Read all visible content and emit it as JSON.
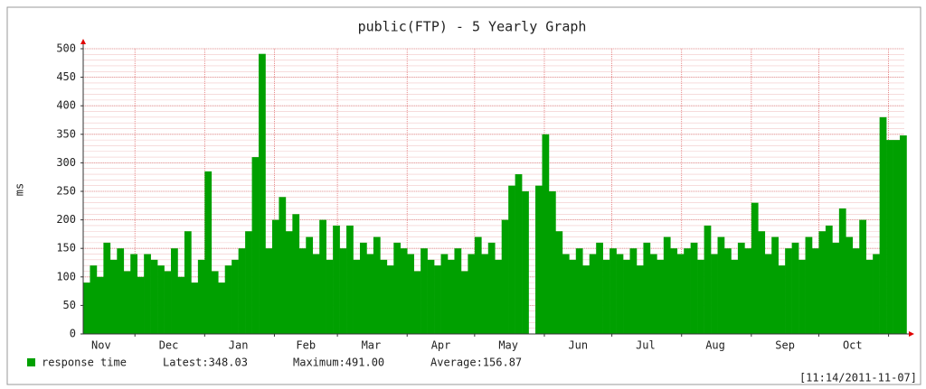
{
  "chart_data": {
    "type": "bar",
    "title": "public(FTP) - 5 Yearly Graph",
    "y_label": "ms",
    "color": "#00a000",
    "ylim": [
      0,
      500
    ],
    "yticks": [
      0,
      50,
      100,
      150,
      200,
      250,
      300,
      350,
      400,
      450,
      500
    ],
    "minor_grid_step": 10,
    "grid": true,
    "xlim": [
      0,
      365
    ],
    "xticks": [
      23,
      54,
      85,
      113,
      144,
      174,
      205,
      235,
      266,
      297,
      327,
      358
    ],
    "month_labels": [
      {
        "value": 8,
        "label": "Nov"
      },
      {
        "value": 38,
        "label": "Dec"
      },
      {
        "value": 69,
        "label": "Jan"
      },
      {
        "value": 99,
        "label": "Feb"
      },
      {
        "value": 128,
        "label": "Mar"
      },
      {
        "value": 159,
        "label": "Apr"
      },
      {
        "value": 189,
        "label": "May"
      },
      {
        "value": 220,
        "label": "Jun"
      },
      {
        "value": 250,
        "label": "Jul"
      },
      {
        "value": 281,
        "label": "Aug"
      },
      {
        "value": 312,
        "label": "Sep"
      },
      {
        "value": 342,
        "label": "Oct"
      }
    ],
    "bar_width": 3,
    "x": [
      0,
      3,
      6,
      9,
      12,
      15,
      18,
      21,
      24,
      27,
      30,
      33,
      36,
      39,
      42,
      45,
      48,
      51,
      54,
      57,
      60,
      63,
      66,
      69,
      72,
      75,
      78,
      81,
      84,
      87,
      90,
      93,
      96,
      99,
      102,
      105,
      108,
      111,
      114,
      117,
      120,
      123,
      126,
      129,
      132,
      135,
      138,
      141,
      144,
      147,
      150,
      153,
      156,
      159,
      162,
      165,
      168,
      171,
      174,
      177,
      180,
      183,
      186,
      189,
      192,
      195,
      198,
      201,
      204,
      207,
      210,
      213,
      216,
      219,
      222,
      225,
      228,
      231,
      234,
      237,
      240,
      243,
      246,
      249,
      252,
      255,
      258,
      261,
      264,
      267,
      270,
      273,
      276,
      279,
      282,
      285,
      288,
      291,
      294,
      297,
      300,
      303,
      306,
      309,
      312,
      315,
      318,
      321,
      324,
      327,
      330,
      333,
      336,
      339,
      342,
      345,
      348,
      351,
      354,
      357,
      360,
      363
    ],
    "series": [
      {
        "name": "response time",
        "color": "#00a000",
        "values": [
          90,
          120,
          100,
          160,
          130,
          150,
          110,
          140,
          100,
          140,
          130,
          120,
          110,
          150,
          100,
          180,
          90,
          130,
          285,
          110,
          90,
          120,
          130,
          150,
          180,
          310,
          491,
          150,
          200,
          240,
          180,
          210,
          150,
          170,
          140,
          200,
          130,
          190,
          150,
          190,
          130,
          160,
          140,
          170,
          130,
          120,
          160,
          150,
          140,
          110,
          150,
          130,
          120,
          140,
          130,
          150,
          110,
          140,
          170,
          140,
          160,
          130,
          200,
          260,
          280,
          250,
          null,
          260,
          350,
          250,
          180,
          140,
          130,
          150,
          120,
          140,
          160,
          130,
          150,
          140,
          130,
          150,
          120,
          160,
          140,
          130,
          170,
          150,
          140,
          150,
          160,
          130,
          190,
          140,
          170,
          150,
          130,
          160,
          150,
          230,
          180,
          140,
          170,
          120,
          150,
          160,
          130,
          170,
          150,
          180,
          190,
          160,
          220,
          170,
          150,
          200,
          130,
          140,
          380,
          340,
          340,
          348.03
        ]
      }
    ],
    "stats": [
      "Latest:348.03",
      "Maximum:491.00",
      "Average:156.87"
    ],
    "timestamp": "[11:14/2011-11-07]"
  }
}
